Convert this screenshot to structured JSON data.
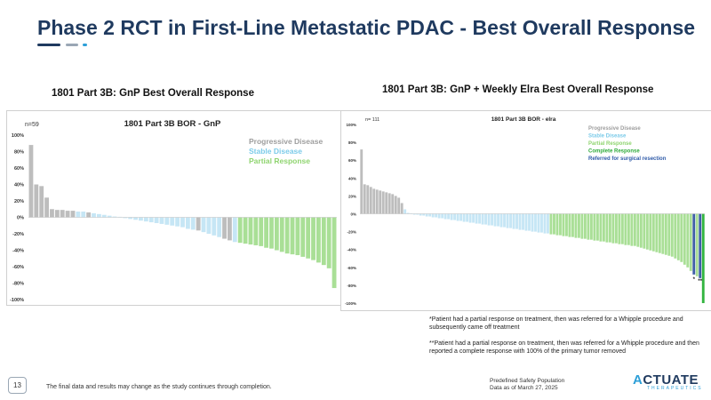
{
  "header": {
    "title": "Phase 2 RCT in First-Line Metastatic PDAC - Best Overall Response",
    "deco_colors": [
      "#1f3a5f",
      "#9aa7b5",
      "#2d9fd8"
    ]
  },
  "left_panel": {
    "subtitle": "1801 Part 3B: GnP Best Overall Response"
  },
  "right_panel": {
    "subtitle": "1801 Part 3B: GnP + Weekly Elra Best Overall Response"
  },
  "footnotes": [
    "*Patient had a partial response on treatment, then was referred for a Whipple procedure and subsequently came off treatment",
    "**Patient had a partial response on treatment, then was referred for a Whipple procedure and then reported a complete response with 100% of the primary tumor removed"
  ],
  "footer": {
    "page_number": "13",
    "disclaimer": "The final data and results may change as the study continues through completion.",
    "safety_line1": "Predefined Safety Population",
    "safety_line2": "Data as of March 27, 2025",
    "logo_text": "CTUATE",
    "logo_letter": "A",
    "logo_sub": "THERAPEUTICS"
  },
  "colors": {
    "PD": "#bdbdbd",
    "SD": "#c6e6f5",
    "PR": "#a9df96",
    "CR": "#33b540",
    "SR": "#3f5fa8",
    "PD_text": "#9e9e9e",
    "SD_text": "#7ccbe9",
    "PR_text": "#8fd46f",
    "CR_text": "#2eaa3a",
    "SR_text": "#2e5aa8"
  },
  "chart_data": [
    {
      "type": "bar",
      "title": "1801 Part 3B BOR - GnP",
      "n_label": "n=59",
      "ylim": [
        -100,
        100
      ],
      "yticks": [
        100,
        80,
        60,
        40,
        20,
        0,
        -20,
        -40,
        -60,
        -80,
        -100
      ],
      "ytick_labels": [
        "100%",
        "80%",
        "60%",
        "40%",
        "20%",
        "0%",
        "-20%",
        "-40%",
        "-60%",
        "-80%",
        "-100%"
      ],
      "legend": [
        {
          "label": "Progressive Disease",
          "key": "PD"
        },
        {
          "label": "Stable Disease",
          "key": "SD"
        },
        {
          "label": "Partial Response",
          "key": "PR"
        }
      ],
      "values": [
        88,
        40,
        38,
        24,
        10,
        9,
        9,
        8,
        8,
        7,
        7,
        6,
        5,
        4,
        3,
        2,
        1,
        0,
        -1,
        -2,
        -3,
        -4,
        -5,
        -6,
        -7,
        -8,
        -9,
        -10,
        -11,
        -12,
        -14,
        -15,
        -16,
        -18,
        -20,
        -22,
        -24,
        -26,
        -28,
        -30,
        -31,
        -32,
        -33,
        -34,
        -35,
        -37,
        -38,
        -40,
        -42,
        -44,
        -45,
        -46,
        -48,
        -50,
        -52,
        -55,
        -58,
        -62,
        -86
      ],
      "categories": [
        "PD",
        "PD",
        "PD",
        "PD",
        "PD",
        "PD",
        "PD",
        "PD",
        "PD",
        "SD",
        "SD",
        "PD",
        "SD",
        "SD",
        "SD",
        "SD",
        "SD",
        "SD",
        "SD",
        "SD",
        "SD",
        "SD",
        "SD",
        "SD",
        "SD",
        "SD",
        "SD",
        "SD",
        "SD",
        "SD",
        "SD",
        "SD",
        "PD",
        "SD",
        "SD",
        "SD",
        "SD",
        "PD",
        "PD",
        "SD",
        "PR",
        "PR",
        "PR",
        "PR",
        "PR",
        "PR",
        "PR",
        "PR",
        "PR",
        "PR",
        "PR",
        "PR",
        "PR",
        "PR",
        "PR",
        "PR",
        "PR",
        "PR",
        "PR"
      ]
    },
    {
      "type": "bar",
      "title": "1801 Part 3B BOR - elra",
      "n_label": "n= 111",
      "ylim": [
        -100,
        100
      ],
      "yticks": [
        100,
        80,
        60,
        40,
        20,
        0,
        -20,
        -40,
        -60,
        -80,
        -100
      ],
      "ytick_labels": [
        "100%",
        "80%",
        "60%",
        "40%",
        "20%",
        "0%",
        "-20%",
        "-40%",
        "-60%",
        "-80%",
        "-100%"
      ],
      "legend": [
        {
          "label": "Progressive Disease",
          "key": "PD"
        },
        {
          "label": "Stable Disease",
          "key": "SD"
        },
        {
          "label": "Partial Response",
          "key": "PR"
        },
        {
          "label": "Complete Response",
          "key": "CR"
        },
        {
          "label": "Referred for surgical resection",
          "key": "SR"
        }
      ],
      "annotations": [
        {
          "text": "*",
          "bar_index": 107
        },
        {
          "text": "**",
          "bar_index": 109
        }
      ],
      "values": [
        72,
        33,
        32,
        30,
        28,
        27,
        26,
        25,
        24,
        23,
        22,
        20,
        18,
        12,
        5,
        1,
        0,
        -1,
        -1,
        -2,
        -2,
        -3,
        -3,
        -4,
        -4,
        -5,
        -5,
        -6,
        -6,
        -7,
        -7,
        -8,
        -8,
        -9,
        -9,
        -10,
        -10,
        -11,
        -11,
        -12,
        -12,
        -13,
        -13,
        -14,
        -14,
        -15,
        -15,
        -16,
        -16,
        -17,
        -17,
        -18,
        -18,
        -19,
        -19,
        -20,
        -20,
        -21,
        -21,
        -22,
        -22,
        -23,
        -23,
        -24,
        -24,
        -25,
        -25,
        -26,
        -26,
        -27,
        -27,
        -28,
        -28,
        -29,
        -29,
        -30,
        -30,
        -31,
        -31,
        -32,
        -32,
        -33,
        -33,
        -34,
        -34,
        -35,
        -35,
        -36,
        -36,
        -37,
        -38,
        -39,
        -40,
        -41,
        -42,
        -43,
        -44,
        -45,
        -46,
        -47,
        -48,
        -50,
        -52,
        -54,
        -57,
        -60,
        -64,
        -68,
        -70,
        -72,
        -100
      ],
      "categories": [
        "PD",
        "PD",
        "PD",
        "PD",
        "PD",
        "PD",
        "PD",
        "PD",
        "PD",
        "PD",
        "PD",
        "PD",
        "PD",
        "PD",
        "SD",
        "SD",
        "SD",
        "SD",
        "SD",
        "SD",
        "SD",
        "SD",
        "SD",
        "SD",
        "SD",
        "SD",
        "SD",
        "SD",
        "SD",
        "SD",
        "SD",
        "SD",
        "SD",
        "SD",
        "SD",
        "SD",
        "SD",
        "SD",
        "SD",
        "SD",
        "SD",
        "SD",
        "SD",
        "SD",
        "SD",
        "SD",
        "SD",
        "SD",
        "SD",
        "SD",
        "SD",
        "SD",
        "SD",
        "SD",
        "SD",
        "SD",
        "SD",
        "SD",
        "SD",
        "SD",
        "SD",
        "PR",
        "PR",
        "PR",
        "PR",
        "PR",
        "PR",
        "PR",
        "PR",
        "PR",
        "PR",
        "PR",
        "PR",
        "PR",
        "PR",
        "PR",
        "PR",
        "PR",
        "PR",
        "PR",
        "PR",
        "PR",
        "PR",
        "PR",
        "PR",
        "PR",
        "PR",
        "PR",
        "PR",
        "PR",
        "PR",
        "PR",
        "PR",
        "PR",
        "PR",
        "PR",
        "PR",
        "PR",
        "PR",
        "PR",
        "PR",
        "PR",
        "PR",
        "PR",
        "PR",
        "PR",
        "PR",
        "SR",
        "PR",
        "SR",
        "CR"
      ]
    }
  ]
}
